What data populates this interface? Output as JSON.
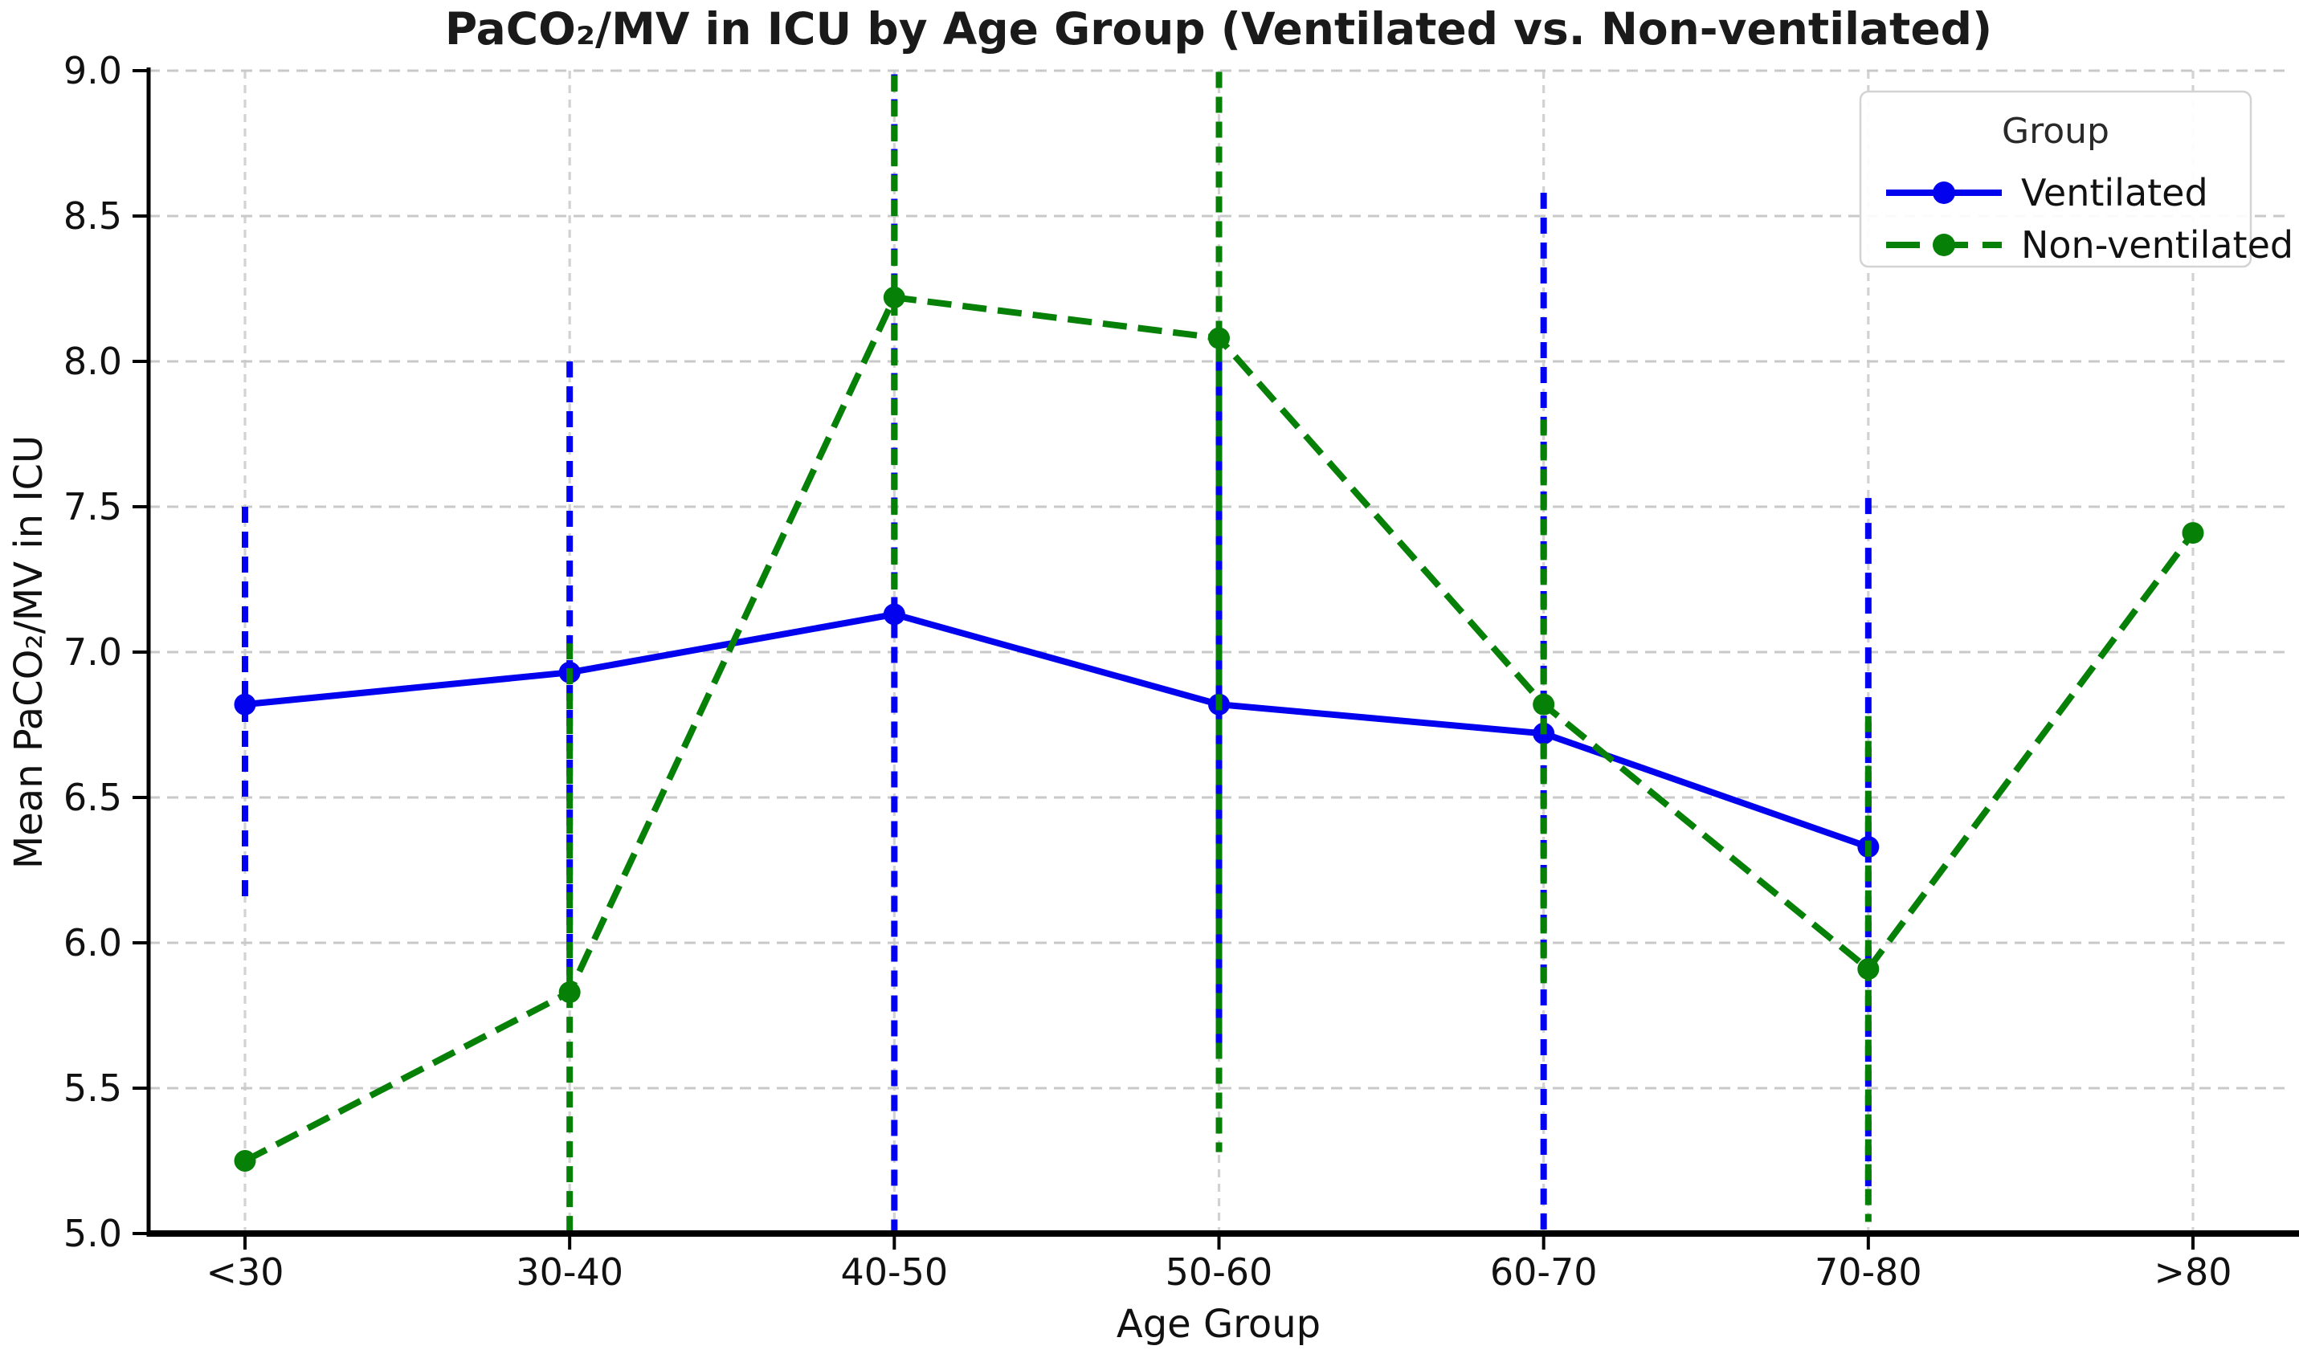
{
  "chart_data": {
    "type": "line",
    "title": "PaCO₂/MV in ICU by Age Group (Ventilated vs. Non-ventilated)",
    "xlabel": "Age Group",
    "ylabel": "Mean PaCO₂/MV in ICU",
    "categories": [
      "<30",
      "30-40",
      "40-50",
      "50-60",
      "60-70",
      "70-80",
      ">80"
    ],
    "ylim": [
      5.0,
      9.0
    ],
    "yticks": [
      "5.0",
      "5.5",
      "6.0",
      "6.5",
      "7.0",
      "7.5",
      "8.0",
      "8.5",
      "9.0"
    ],
    "grid": {
      "shown": true,
      "horizontal_style": "dashed",
      "vertical_style": "dotted"
    },
    "legend": {
      "title": "Group",
      "position": "upper right"
    },
    "series": [
      {
        "name": "Ventilated",
        "color": "#0202ee",
        "line_style": "solid",
        "marker": "circle",
        "values": [
          6.82,
          6.93,
          7.13,
          6.82,
          6.72,
          6.33,
          null
        ],
        "error": [
          0.68,
          1.07,
          2.2,
          1.2,
          1.86,
          1.2,
          null
        ]
      },
      {
        "name": "Non-ventilated",
        "color": "#068006",
        "line_style": "dashed",
        "marker": "circle",
        "values": [
          5.25,
          5.83,
          8.22,
          8.08,
          6.82,
          5.91,
          7.41
        ],
        "error": [
          0,
          1.2,
          1.02,
          2.8,
          0.98,
          0.87,
          0
        ]
      }
    ],
    "style_colors": {
      "grid": "#c9c9c9",
      "spine": "#000000",
      "text": "#111111",
      "legend_border": "#d3d3d3"
    }
  }
}
